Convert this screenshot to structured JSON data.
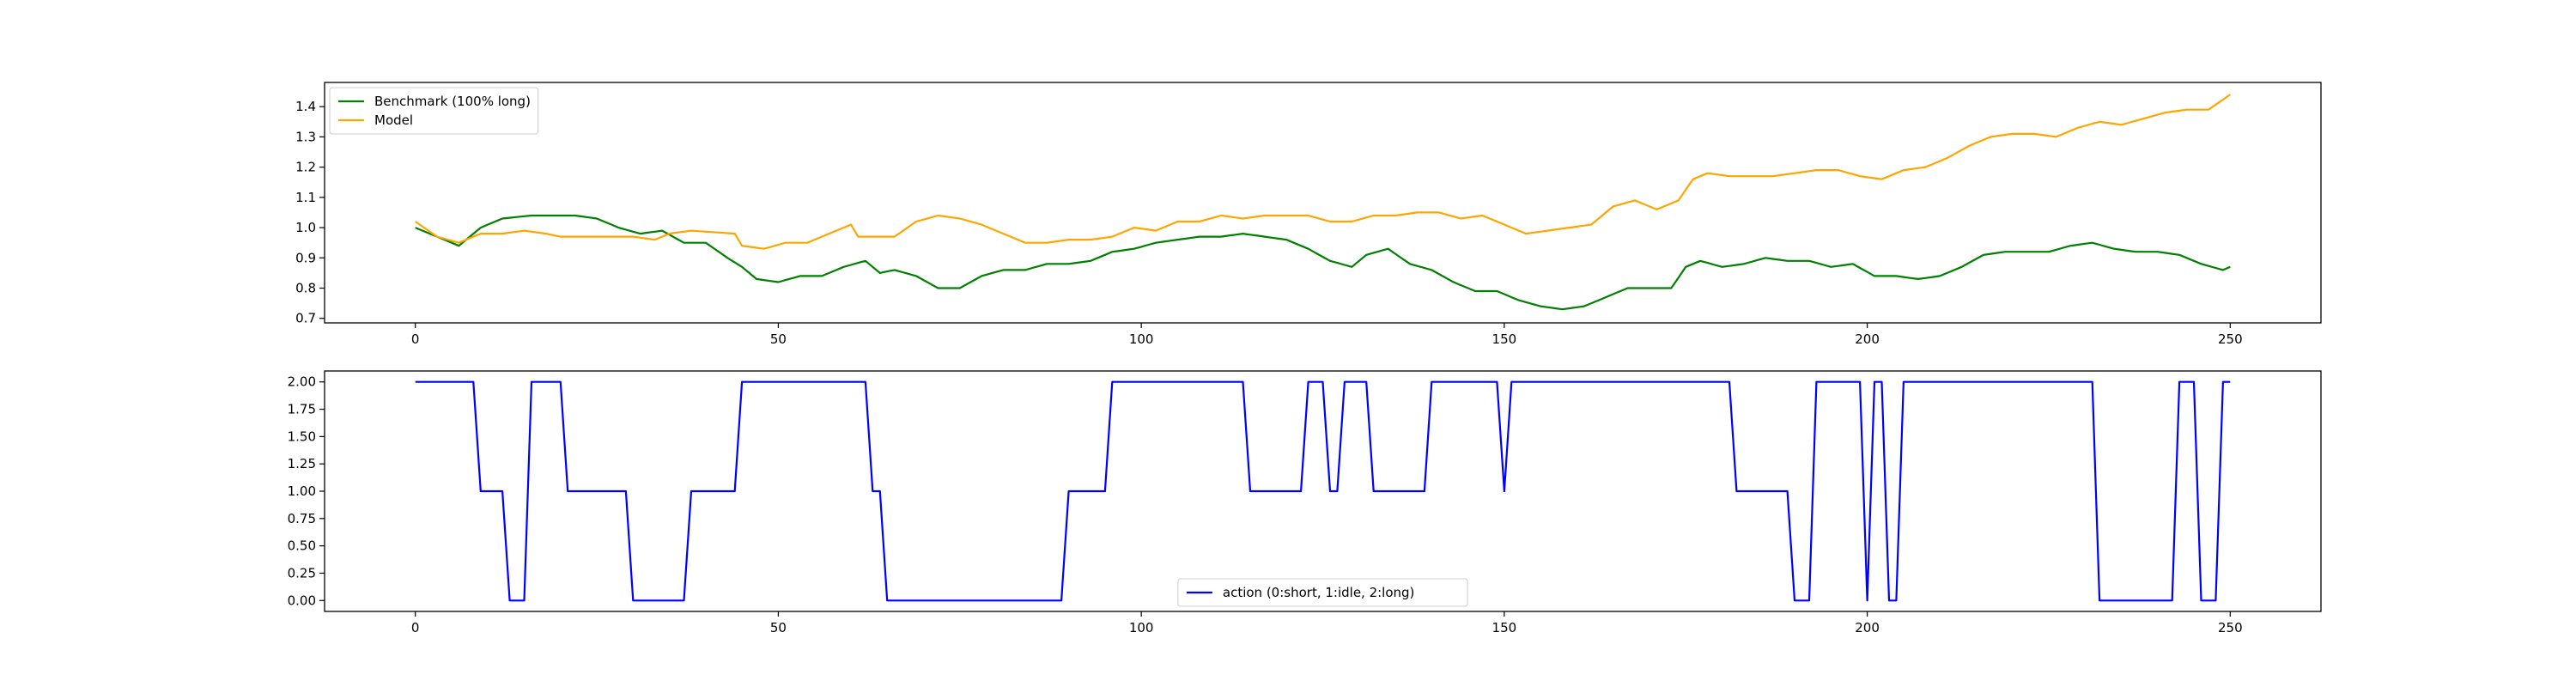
{
  "chart_data": [
    {
      "type": "line",
      "x_range": [
        0,
        250
      ],
      "xlim": [
        -12.5,
        262.5
      ],
      "ylim": [
        0.685,
        1.48
      ],
      "xticks": [
        0,
        50,
        100,
        150,
        200,
        250
      ],
      "yticks": [
        0.7,
        0.8,
        0.9,
        1.0,
        1.1,
        1.2,
        1.3,
        1.4
      ],
      "ytick_decimals": 1,
      "legend_position": "upper-left",
      "series": [
        {
          "name": "Benchmark (100% long)",
          "color": "#008000",
          "keypoints": [
            [
              0,
              1.0
            ],
            [
              3,
              0.97
            ],
            [
              6,
              0.94
            ],
            [
              9,
              1.0
            ],
            [
              12,
              1.03
            ],
            [
              16,
              1.04
            ],
            [
              19,
              1.04
            ],
            [
              22,
              1.04
            ],
            [
              25,
              1.03
            ],
            [
              28,
              1.0
            ],
            [
              31,
              0.98
            ],
            [
              34,
              0.99
            ],
            [
              37,
              0.95
            ],
            [
              40,
              0.95
            ],
            [
              43,
              0.9
            ],
            [
              45,
              0.87
            ],
            [
              47,
              0.83
            ],
            [
              50,
              0.82
            ],
            [
              53,
              0.84
            ],
            [
              56,
              0.84
            ],
            [
              59,
              0.87
            ],
            [
              62,
              0.89
            ],
            [
              64,
              0.85
            ],
            [
              66,
              0.86
            ],
            [
              69,
              0.84
            ],
            [
              72,
              0.8
            ],
            [
              75,
              0.8
            ],
            [
              78,
              0.84
            ],
            [
              81,
              0.86
            ],
            [
              84,
              0.86
            ],
            [
              87,
              0.88
            ],
            [
              90,
              0.88
            ],
            [
              93,
              0.89
            ],
            [
              96,
              0.92
            ],
            [
              99,
              0.93
            ],
            [
              102,
              0.95
            ],
            [
              105,
              0.96
            ],
            [
              108,
              0.97
            ],
            [
              111,
              0.97
            ],
            [
              114,
              0.98
            ],
            [
              117,
              0.97
            ],
            [
              120,
              0.96
            ],
            [
              123,
              0.93
            ],
            [
              126,
              0.89
            ],
            [
              129,
              0.87
            ],
            [
              131,
              0.91
            ],
            [
              134,
              0.93
            ],
            [
              137,
              0.88
            ],
            [
              140,
              0.86
            ],
            [
              143,
              0.82
            ],
            [
              146,
              0.79
            ],
            [
              149,
              0.79
            ],
            [
              152,
              0.76
            ],
            [
              155,
              0.74
            ],
            [
              158,
              0.73
            ],
            [
              161,
              0.74
            ],
            [
              164,
              0.77
            ],
            [
              167,
              0.8
            ],
            [
              170,
              0.8
            ],
            [
              173,
              0.8
            ],
            [
              175,
              0.87
            ],
            [
              177,
              0.89
            ],
            [
              180,
              0.87
            ],
            [
              183,
              0.88
            ],
            [
              186,
              0.9
            ],
            [
              189,
              0.89
            ],
            [
              192,
              0.89
            ],
            [
              195,
              0.87
            ],
            [
              198,
              0.88
            ],
            [
              201,
              0.84
            ],
            [
              204,
              0.84
            ],
            [
              207,
              0.83
            ],
            [
              210,
              0.84
            ],
            [
              213,
              0.87
            ],
            [
              216,
              0.91
            ],
            [
              219,
              0.92
            ],
            [
              222,
              0.92
            ],
            [
              225,
              0.92
            ],
            [
              228,
              0.94
            ],
            [
              231,
              0.95
            ],
            [
              234,
              0.93
            ],
            [
              237,
              0.92
            ],
            [
              240,
              0.92
            ],
            [
              243,
              0.91
            ],
            [
              246,
              0.88
            ],
            [
              249,
              0.86
            ],
            [
              250,
              0.87
            ]
          ]
        },
        {
          "name": "Model",
          "color": "#FFA500",
          "keypoints": [
            [
              0,
              1.02
            ],
            [
              3,
              0.97
            ],
            [
              6,
              0.95
            ],
            [
              9,
              0.98
            ],
            [
              12,
              0.98
            ],
            [
              15,
              0.99
            ],
            [
              18,
              0.98
            ],
            [
              20,
              0.97
            ],
            [
              25,
              0.97
            ],
            [
              30,
              0.97
            ],
            [
              33,
              0.96
            ],
            [
              35,
              0.98
            ],
            [
              38,
              0.99
            ],
            [
              44,
              0.98
            ],
            [
              45,
              0.94
            ],
            [
              48,
              0.93
            ],
            [
              51,
              0.95
            ],
            [
              54,
              0.95
            ],
            [
              57,
              0.98
            ],
            [
              60,
              1.01
            ],
            [
              61,
              0.97
            ],
            [
              63,
              0.97
            ],
            [
              66,
              0.97
            ],
            [
              69,
              1.02
            ],
            [
              72,
              1.04
            ],
            [
              75,
              1.03
            ],
            [
              78,
              1.01
            ],
            [
              81,
              0.98
            ],
            [
              84,
              0.95
            ],
            [
              87,
              0.95
            ],
            [
              90,
              0.96
            ],
            [
              93,
              0.96
            ],
            [
              96,
              0.97
            ],
            [
              99,
              1.0
            ],
            [
              102,
              0.99
            ],
            [
              105,
              1.02
            ],
            [
              108,
              1.02
            ],
            [
              111,
              1.04
            ],
            [
              114,
              1.03
            ],
            [
              117,
              1.04
            ],
            [
              120,
              1.04
            ],
            [
              123,
              1.04
            ],
            [
              126,
              1.02
            ],
            [
              129,
              1.02
            ],
            [
              132,
              1.04
            ],
            [
              135,
              1.04
            ],
            [
              138,
              1.05
            ],
            [
              141,
              1.05
            ],
            [
              144,
              1.03
            ],
            [
              147,
              1.04
            ],
            [
              150,
              1.01
            ],
            [
              153,
              0.98
            ],
            [
              156,
              0.99
            ],
            [
              159,
              1.0
            ],
            [
              162,
              1.01
            ],
            [
              165,
              1.07
            ],
            [
              168,
              1.09
            ],
            [
              171,
              1.06
            ],
            [
              174,
              1.09
            ],
            [
              176,
              1.16
            ],
            [
              178,
              1.18
            ],
            [
              181,
              1.17
            ],
            [
              184,
              1.17
            ],
            [
              187,
              1.17
            ],
            [
              190,
              1.18
            ],
            [
              193,
              1.19
            ],
            [
              196,
              1.19
            ],
            [
              199,
              1.17
            ],
            [
              202,
              1.16
            ],
            [
              205,
              1.19
            ],
            [
              208,
              1.2
            ],
            [
              211,
              1.23
            ],
            [
              214,
              1.27
            ],
            [
              217,
              1.3
            ],
            [
              220,
              1.31
            ],
            [
              223,
              1.31
            ],
            [
              226,
              1.3
            ],
            [
              229,
              1.33
            ],
            [
              232,
              1.35
            ],
            [
              235,
              1.34
            ],
            [
              238,
              1.36
            ],
            [
              241,
              1.38
            ],
            [
              244,
              1.39
            ],
            [
              247,
              1.39
            ],
            [
              250,
              1.44
            ]
          ]
        }
      ]
    },
    {
      "type": "line",
      "x_range": [
        0,
        250
      ],
      "xlim": [
        -12.5,
        262.5
      ],
      "ylim": [
        -0.1,
        2.1
      ],
      "xticks": [
        0,
        50,
        100,
        150,
        200,
        250
      ],
      "yticks": [
        0.0,
        0.25,
        0.5,
        0.75,
        1.0,
        1.25,
        1.5,
        1.75,
        2.0
      ],
      "ytick_decimals": 2,
      "legend_position": "lower-center",
      "series": [
        {
          "name": "action (0:short, 1:idle, 2:long)",
          "color": "#0000FF",
          "keypoints": [
            [
              0,
              2
            ],
            [
              8,
              2
            ],
            [
              9,
              1
            ],
            [
              12,
              1
            ],
            [
              13,
              0
            ],
            [
              15,
              0
            ],
            [
              16,
              2
            ],
            [
              20,
              2
            ],
            [
              21,
              1
            ],
            [
              29,
              1
            ],
            [
              30,
              0
            ],
            [
              37,
              0
            ],
            [
              38,
              1
            ],
            [
              44,
              1
            ],
            [
              45,
              2
            ],
            [
              62,
              2
            ],
            [
              63,
              1
            ],
            [
              64,
              1
            ],
            [
              65,
              0
            ],
            [
              89,
              0
            ],
            [
              90,
              1
            ],
            [
              95,
              1
            ],
            [
              96,
              2
            ],
            [
              114,
              2
            ],
            [
              115,
              1
            ],
            [
              122,
              1
            ],
            [
              123,
              2
            ],
            [
              125,
              2
            ],
            [
              126,
              1
            ],
            [
              127,
              1
            ],
            [
              128,
              2
            ],
            [
              131,
              2
            ],
            [
              132,
              1
            ],
            [
              139,
              1
            ],
            [
              140,
              2
            ],
            [
              149,
              2
            ],
            [
              150,
              1
            ],
            [
              151,
              2
            ],
            [
              181,
              2
            ],
            [
              182,
              1
            ],
            [
              189,
              1
            ],
            [
              190,
              0
            ],
            [
              192,
              0
            ],
            [
              193,
              2
            ],
            [
              199,
              2
            ],
            [
              200,
              0
            ],
            [
              201,
              2
            ],
            [
              202,
              2
            ],
            [
              203,
              0
            ],
            [
              204,
              0
            ],
            [
              205,
              2
            ],
            [
              231,
              2
            ],
            [
              232,
              0
            ],
            [
              242,
              0
            ],
            [
              243,
              2
            ],
            [
              245,
              2
            ],
            [
              246,
              0
            ],
            [
              248,
              0
            ],
            [
              249,
              2
            ],
            [
              250,
              2
            ]
          ]
        }
      ]
    }
  ]
}
